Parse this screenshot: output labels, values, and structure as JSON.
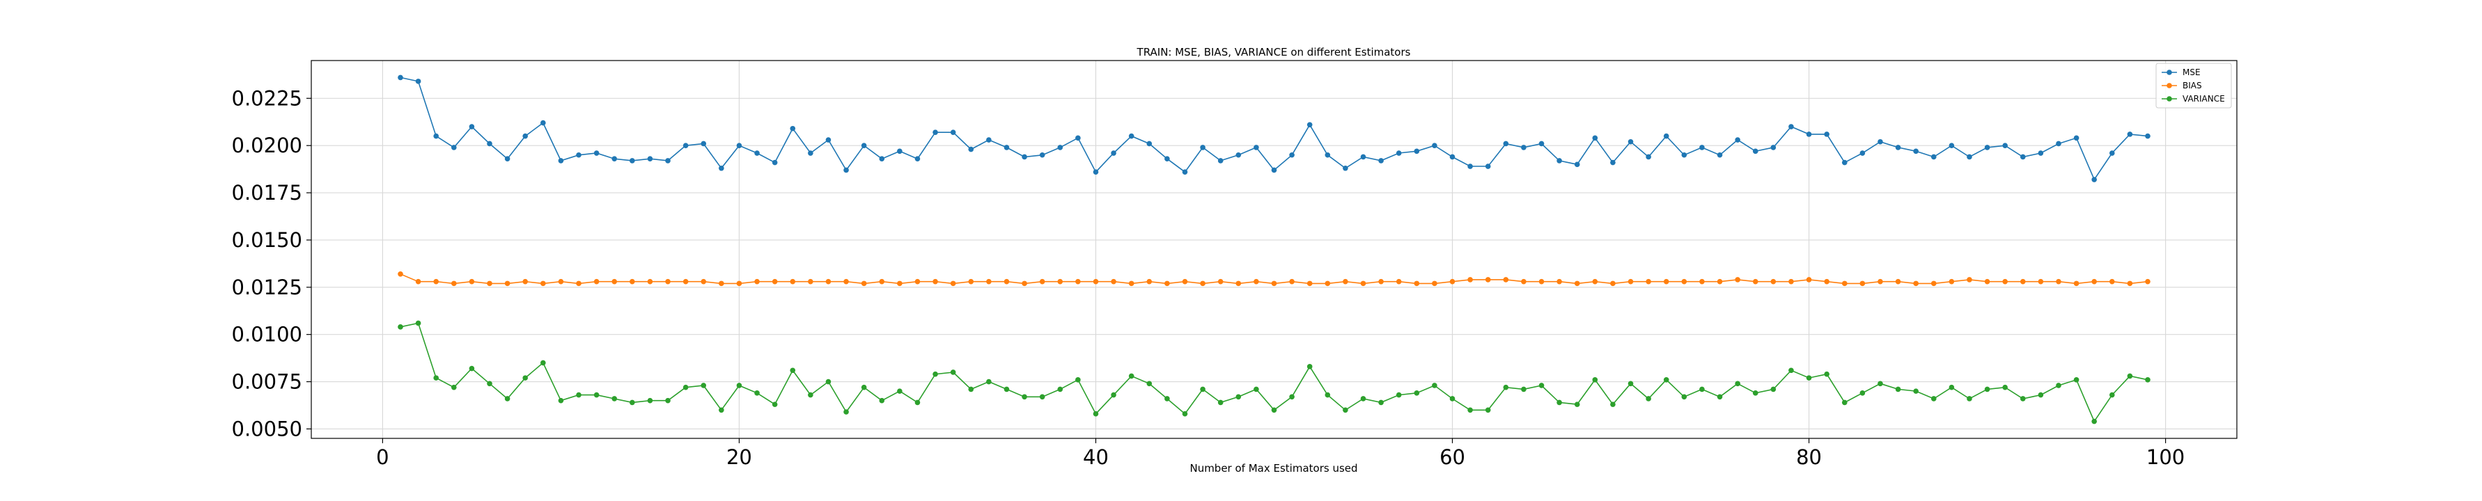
{
  "chart_data": {
    "type": "line",
    "title": "TRAIN: MSE, BIAS, VARIANCE on different Estimators",
    "xlabel": "Number of Max Estimators used",
    "ylabel": "",
    "xlim": [
      -4,
      104
    ],
    "ylim": [
      0.0045,
      0.0245
    ],
    "xticks": [
      0,
      20,
      40,
      60,
      80,
      100
    ],
    "yticks": [
      0.005,
      0.0075,
      0.01,
      0.0125,
      0.015,
      0.0175,
      0.02,
      0.0225
    ],
    "xtick_labels": [
      "0",
      "20",
      "40",
      "60",
      "80",
      "100"
    ],
    "ytick_labels": [
      "0.0050",
      "0.0075",
      "0.0100",
      "0.0125",
      "0.0150",
      "0.0175",
      "0.0200",
      "0.0225"
    ],
    "grid": true,
    "legend_position": "top-right",
    "x": [
      1,
      2,
      3,
      4,
      5,
      6,
      7,
      8,
      9,
      10,
      11,
      12,
      13,
      14,
      15,
      16,
      17,
      18,
      19,
      20,
      21,
      22,
      23,
      24,
      25,
      26,
      27,
      28,
      29,
      30,
      31,
      32,
      33,
      34,
      35,
      36,
      37,
      38,
      39,
      40,
      41,
      42,
      43,
      44,
      45,
      46,
      47,
      48,
      49,
      50,
      51,
      52,
      53,
      54,
      55,
      56,
      57,
      58,
      59,
      60,
      61,
      62,
      63,
      64,
      65,
      66,
      67,
      68,
      69,
      70,
      71,
      72,
      73,
      74,
      75,
      76,
      77,
      78,
      79,
      80,
      81,
      82,
      83,
      84,
      85,
      86,
      87,
      88,
      89,
      90,
      91,
      92,
      93,
      94,
      95,
      96,
      97,
      98,
      99
    ],
    "series": [
      {
        "name": "MSE",
        "color": "#1f77b4",
        "values": [
          0.0236,
          0.0234,
          0.0205,
          0.0199,
          0.021,
          0.0201,
          0.0193,
          0.0205,
          0.0212,
          0.0192,
          0.0195,
          0.0196,
          0.0193,
          0.0192,
          0.0193,
          0.0192,
          0.02,
          0.0201,
          0.0188,
          0.02,
          0.0196,
          0.0191,
          0.0209,
          0.0196,
          0.0203,
          0.0187,
          0.02,
          0.0193,
          0.0197,
          0.0193,
          0.0207,
          0.0207,
          0.0198,
          0.0203,
          0.0199,
          0.0194,
          0.0195,
          0.0199,
          0.0204,
          0.0186,
          0.0196,
          0.0205,
          0.0201,
          0.0193,
          0.0186,
          0.0199,
          0.0192,
          0.0195,
          0.0199,
          0.0187,
          0.0195,
          0.0211,
          0.0195,
          0.0188,
          0.0194,
          0.0192,
          0.0196,
          0.0197,
          0.02,
          0.0194,
          0.0189,
          0.0189,
          0.0201,
          0.0199,
          0.0201,
          0.0192,
          0.019,
          0.0204,
          0.0191,
          0.0202,
          0.0194,
          0.0205,
          0.0195,
          0.0199,
          0.0195,
          0.0203,
          0.0197,
          0.0199,
          0.021,
          0.0206,
          0.0206,
          0.0191,
          0.0196,
          0.0202,
          0.0199,
          0.0197,
          0.0194,
          0.02,
          0.0194,
          0.0199,
          0.02,
          0.0194,
          0.0196,
          0.0201,
          0.0204,
          0.0182,
          0.0196,
          0.0206,
          0.0205
        ]
      },
      {
        "name": "BIAS",
        "color": "#ff7f0e",
        "values": [
          0.0132,
          0.0128,
          0.0128,
          0.0127,
          0.0128,
          0.0127,
          0.0127,
          0.0128,
          0.0127,
          0.0128,
          0.0127,
          0.0128,
          0.0128,
          0.0128,
          0.0128,
          0.0128,
          0.0128,
          0.0128,
          0.0127,
          0.0127,
          0.0128,
          0.0128,
          0.0128,
          0.0128,
          0.0128,
          0.0128,
          0.0127,
          0.0128,
          0.0127,
          0.0128,
          0.0128,
          0.0127,
          0.0128,
          0.0128,
          0.0128,
          0.0127,
          0.0128,
          0.0128,
          0.0128,
          0.0128,
          0.0128,
          0.0127,
          0.0128,
          0.0127,
          0.0128,
          0.0127,
          0.0128,
          0.0127,
          0.0128,
          0.0127,
          0.0128,
          0.0127,
          0.0127,
          0.0128,
          0.0127,
          0.0128,
          0.0128,
          0.0127,
          0.0127,
          0.0128,
          0.0129,
          0.0129,
          0.0129,
          0.0128,
          0.0128,
          0.0128,
          0.0127,
          0.0128,
          0.0127,
          0.0128,
          0.0128,
          0.0128,
          0.0128,
          0.0128,
          0.0128,
          0.0129,
          0.0128,
          0.0128,
          0.0128,
          0.0129,
          0.0128,
          0.0127,
          0.0127,
          0.0128,
          0.0128,
          0.0127,
          0.0127,
          0.0128,
          0.0129,
          0.0128,
          0.0128,
          0.0128,
          0.0128,
          0.0128,
          0.0127,
          0.0128,
          0.0128,
          0.0127,
          0.0128
        ]
      },
      {
        "name": "VARIANCE",
        "color": "#2ca02c",
        "values": [
          0.0104,
          0.0106,
          0.0077,
          0.0072,
          0.0082,
          0.0074,
          0.0066,
          0.0077,
          0.0085,
          0.0065,
          0.0068,
          0.0068,
          0.0066,
          0.0064,
          0.0065,
          0.0065,
          0.0072,
          0.0073,
          0.006,
          0.0073,
          0.0069,
          0.0063,
          0.0081,
          0.0068,
          0.0075,
          0.0059,
          0.0072,
          0.0065,
          0.007,
          0.0064,
          0.0079,
          0.008,
          0.0071,
          0.0075,
          0.0071,
          0.0067,
          0.0067,
          0.0071,
          0.0076,
          0.0058,
          0.0068,
          0.0078,
          0.0074,
          0.0066,
          0.0058,
          0.0071,
          0.0064,
          0.0067,
          0.0071,
          0.006,
          0.0067,
          0.0083,
          0.0068,
          0.006,
          0.0066,
          0.0064,
          0.0068,
          0.0069,
          0.0073,
          0.0066,
          0.006,
          0.006,
          0.0072,
          0.0071,
          0.0073,
          0.0064,
          0.0063,
          0.0076,
          0.0063,
          0.0074,
          0.0066,
          0.0076,
          0.0067,
          0.0071,
          0.0067,
          0.0074,
          0.0069,
          0.0071,
          0.0081,
          0.0077,
          0.0079,
          0.0064,
          0.0069,
          0.0074,
          0.0071,
          0.007,
          0.0066,
          0.0072,
          0.0066,
          0.0071,
          0.0072,
          0.0066,
          0.0068,
          0.0073,
          0.0076,
          0.0054,
          0.0068,
          0.0078,
          0.0076
        ]
      }
    ]
  }
}
